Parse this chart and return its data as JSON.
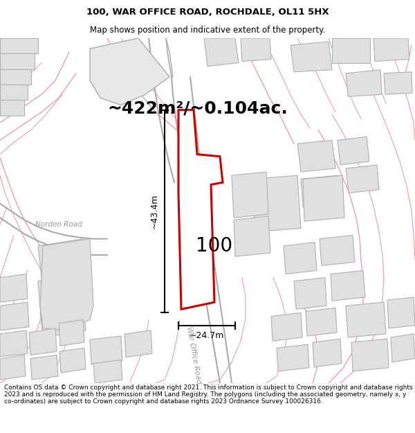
{
  "title": "100, WAR OFFICE ROAD, ROCHDALE, OL11 5HX",
  "subtitle": "Map shows position and indicative extent of the property.",
  "area_text": "~422m²/~0.104ac.",
  "label_100": "100",
  "dim_horizontal": "~24.7m",
  "dim_vertical": "~43.4m",
  "road_label": "War Office Road",
  "road_label2": "Norden Road",
  "footer": "Contains OS data © Crown copyright and database right 2021. This information is subject to Crown copyright and database rights 2023 and is reproduced with the permission of HM Land Registry. The polygons (including the associated geometry, namely x, y co-ordinates) are subject to Crown copyright and database rights 2023 Ordnance Survey 100026316.",
  "plot_color": "#cc0000",
  "building_fill": "#e0e0e0",
  "building_edge": "#b0b0b0",
  "road_pink": "#e8a0a0",
  "road_gray": "#aaaaaa",
  "title_fontsize": 9.5,
  "subtitle_fontsize": 8.5,
  "area_fontsize": 18,
  "label_fontsize": 20,
  "dim_fontsize": 9,
  "footer_fontsize": 6.5
}
